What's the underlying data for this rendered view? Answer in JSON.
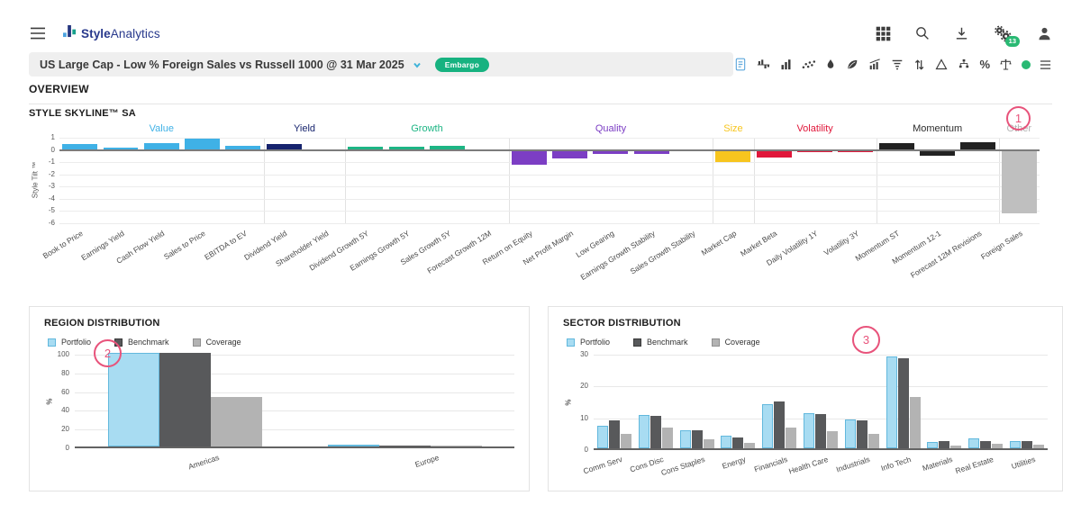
{
  "header": {
    "brand": {
      "name_bold": "Style",
      "name_regular": "Analytics"
    },
    "left_icons": [
      "hamburger-menu"
    ],
    "right_icons": [
      "apps-grid",
      "search",
      "download",
      "settings-gears",
      "user"
    ],
    "settings_badge": "13"
  },
  "report_bar": {
    "title": "US Large Cap - Low % Foreign Sales vs Russell 1000 @ 31 Mar 2025",
    "dropdown_icon": "chevron-down",
    "badge": "Embargo",
    "tools": [
      "report-document",
      "skyline-chart",
      "bar-chart",
      "scatter-plot",
      "droplet",
      "leaf",
      "growth-chart",
      "funnel-filter",
      "sort-arrows",
      "delta-triangle",
      "hierarchy",
      "percent",
      "scales",
      "status-dot",
      "list-menu"
    ],
    "percent_glyph": "%"
  },
  "overview": {
    "title": "OVERVIEW"
  },
  "annotations": [
    {
      "label": "1",
      "target": "skyline-other-group"
    },
    {
      "label": "2",
      "target": "region-legend"
    },
    {
      "label": "3",
      "target": "sector-chart"
    }
  ],
  "colors": {
    "embargo_green": "#17b280",
    "notification_green": "#29b973",
    "annotation_pink": "#e8537b",
    "brand_navy": "#28398c"
  },
  "chart_data": [
    {
      "id": "skyline",
      "type": "bar",
      "title": "STYLE SKYLINE™ SA",
      "ylabel": "Style Tilt ™",
      "ylim": [
        -6,
        1
      ],
      "yticks": [
        1,
        0,
        -1,
        -2,
        -3,
        -4,
        -5,
        -6
      ],
      "groups": [
        {
          "name": "Value",
          "color": "#3fb1e6"
        },
        {
          "name": "Yield",
          "color": "#17246e"
        },
        {
          "name": "Growth",
          "color": "#1db584"
        },
        {
          "name": "Quality",
          "color": "#7c3ec4"
        },
        {
          "name": "Size",
          "color": "#f7c51e"
        },
        {
          "name": "Volatility",
          "color": "#e0173a"
        },
        {
          "name": "Momentum",
          "color": "#222222",
          "label_color": "#2d2d2d"
        },
        {
          "name": "Other",
          "color": "#bfbfbf",
          "label_color": "#b3b3b3"
        }
      ],
      "factors": [
        {
          "label": "Book to Price",
          "group": "Value",
          "value": 0.5
        },
        {
          "label": "Earnings Yield",
          "group": "Value",
          "value": 0.2
        },
        {
          "label": "Cash Flow Yield",
          "group": "Value",
          "value": 0.55
        },
        {
          "label": "Sales to Price",
          "group": "Value",
          "value": 0.9
        },
        {
          "label": "EBITDA to EV",
          "group": "Value",
          "value": 0.3
        },
        {
          "label": "Dividend Yield",
          "group": "Yield",
          "value": 0.45
        },
        {
          "label": "Shareholder Yield",
          "group": "Yield",
          "value": -0.08
        },
        {
          "label": "Dividend Growth 5Y",
          "group": "Growth",
          "value": 0.25
        },
        {
          "label": "Earnings Growth 5Y",
          "group": "Growth",
          "value": 0.25
        },
        {
          "label": "Sales Growth 5Y",
          "group": "Growth",
          "value": 0.3
        },
        {
          "label": "Forecast Growth 12M",
          "group": "Growth",
          "value": 0.05
        },
        {
          "label": "Return on Equity",
          "group": "Quality",
          "value": -1.25
        },
        {
          "label": "Net Profit Margin",
          "group": "Quality",
          "value": -0.7
        },
        {
          "label": "Low Gearing",
          "group": "Quality",
          "value": -0.35
        },
        {
          "label": "Earnings Growth Stability",
          "group": "Quality",
          "value": -0.3
        },
        {
          "label": "Sales Growth Stability",
          "group": "Quality",
          "value": -0.08
        },
        {
          "label": "Market Cap",
          "group": "Size",
          "value": -1.0
        },
        {
          "label": "Market Beta",
          "group": "Volatility",
          "value": -0.6
        },
        {
          "label": "Daily Volatility 1Y",
          "group": "Volatility",
          "value": -0.15
        },
        {
          "label": "Volatility 3Y",
          "group": "Volatility",
          "value": -0.2
        },
        {
          "label": "Momentum ST",
          "group": "Momentum",
          "value": 0.55
        },
        {
          "label": "Momentum 12-1",
          "group": "Momentum",
          "value": -0.5
        },
        {
          "label": "Forecast 12M Revisions",
          "group": "Momentum",
          "value": 0.65
        },
        {
          "label": "Foreign Sales",
          "group": "Other",
          "value": -5.2
        }
      ]
    },
    {
      "id": "region",
      "type": "grouped-bar",
      "title": "REGION DISTRIBUTION",
      "ylabel": "%",
      "ylim": [
        0,
        100
      ],
      "yticks": [
        100,
        80,
        60,
        40,
        20,
        0
      ],
      "categories": [
        "Americas",
        "Europe"
      ],
      "series": [
        {
          "name": "Portfolio",
          "color": "#a8dcf2",
          "border": "#62b8dd",
          "values": [
            100,
            0.3
          ]
        },
        {
          "name": "Benchmark",
          "color": "#58595b",
          "border": "#3a3a3a",
          "values": [
            99.6,
            1.2
          ]
        },
        {
          "name": "Coverage",
          "color": "#b3b3b3",
          "border": "#8f8f8f",
          "values": [
            53,
            0.5
          ]
        }
      ]
    },
    {
      "id": "sector",
      "type": "grouped-bar",
      "title": "SECTOR DISTRIBUTION",
      "ylabel": "%",
      "ylim": [
        0,
        30
      ],
      "yticks": [
        30,
        20,
        10,
        0
      ],
      "categories": [
        "Comm Serv",
        "Cons Disc",
        "Cons Staples",
        "Energy",
        "Financials",
        "Health Care",
        "Industrials",
        "Info Tech",
        "Materials",
        "Real Estate",
        "Utilities"
      ],
      "series": [
        {
          "name": "Portfolio",
          "color": "#a8dcf2",
          "border": "#62b8dd",
          "values": [
            7.2,
            10.4,
            5.8,
            3.9,
            13.9,
            11.1,
            9.1,
            28.8,
            2.1,
            3.1,
            2.2
          ]
        },
        {
          "name": "Benchmark",
          "color": "#58595b",
          "border": "#3a3a3a",
          "values": [
            8.7,
            10.1,
            5.7,
            3.5,
            14.8,
            10.7,
            8.9,
            28.2,
            2.3,
            2.4,
            2.3
          ]
        },
        {
          "name": "Coverage",
          "color": "#b3b3b3",
          "border": "#8f8f8f",
          "values": [
            4.6,
            6.6,
            2.7,
            1.6,
            6.6,
            5.4,
            4.4,
            16.0,
            0.9,
            1.3,
            1.0
          ]
        }
      ]
    }
  ]
}
